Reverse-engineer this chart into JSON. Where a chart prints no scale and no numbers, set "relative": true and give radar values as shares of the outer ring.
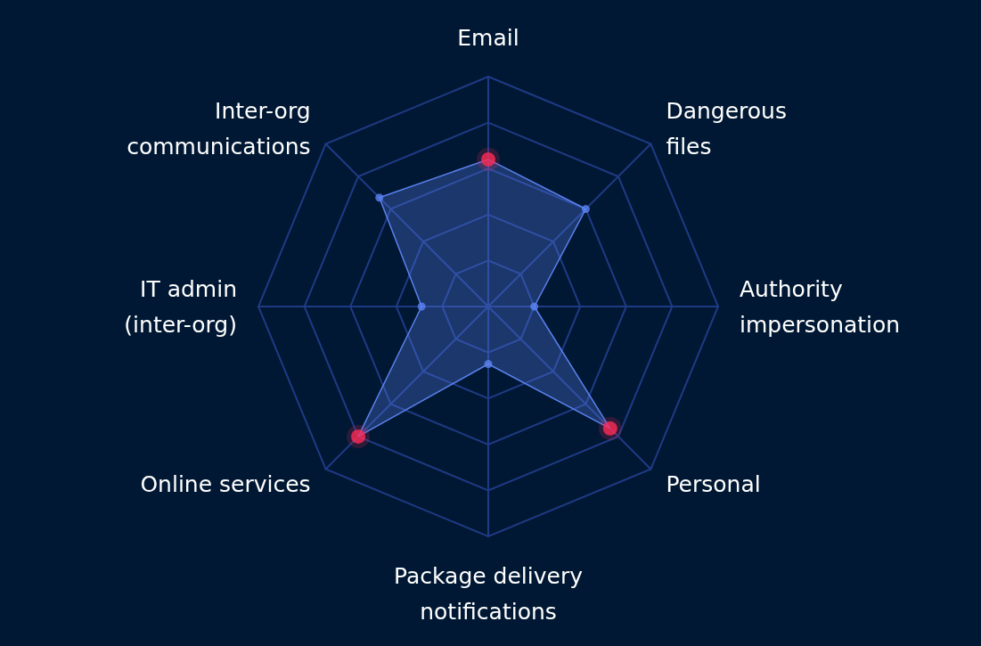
{
  "chart_data": {
    "type": "radar",
    "relative": true,
    "categories": [
      "Email",
      "Dangerous files",
      "Authority impersonation",
      "Personal",
      "Package delivery notifications",
      "Online services",
      "IT admin (inter-org)",
      "Inter-org communications"
    ],
    "series": [
      {
        "color": "#5b82f0",
        "values": [
          0.64,
          0.6,
          0.2,
          0.75,
          0.25,
          0.8,
          0.29,
          0.67
        ],
        "colors": [
          "#ff2b55",
          "#5b82f0",
          "#5b82f0",
          "#ff2b55",
          "#5b82f0",
          "#ff2b55",
          "#5b82f0",
          "#5b82f0"
        ]
      }
    ],
    "marker": "circle"
  }
}
